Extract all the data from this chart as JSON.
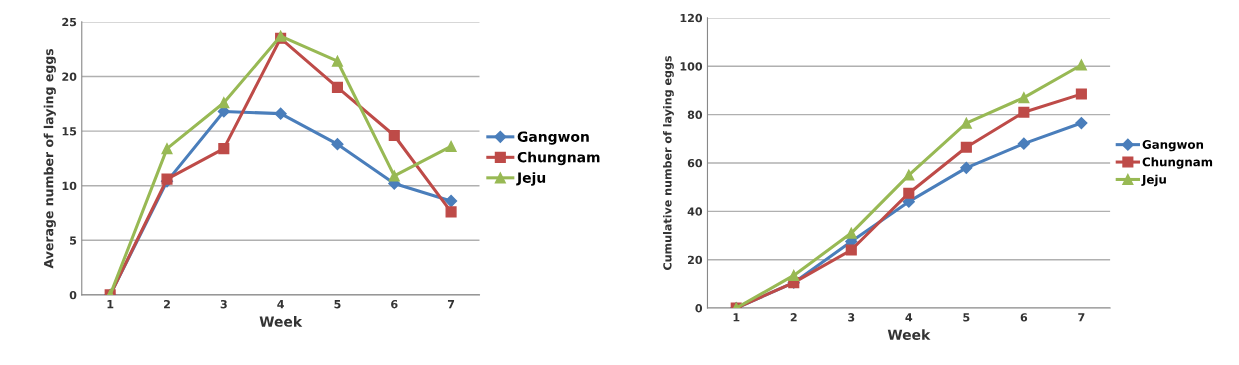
{
  "chart_data": [
    {
      "type": "line",
      "xlabel": "Week",
      "ylabel": "Average number of laying eggs",
      "categories": [
        "1",
        "2",
        "3",
        "4",
        "5",
        "6",
        "7"
      ],
      "ylim": [
        0,
        25
      ],
      "yticks": [
        0,
        5,
        10,
        15,
        20,
        25
      ],
      "grid": "y",
      "legend": "right",
      "series": [
        {
          "name": "Gangwon",
          "color": "#4a7ebb",
          "marker": "diamond",
          "values": [
            0,
            10.4,
            16.8,
            16.6,
            13.8,
            10.2,
            8.6
          ]
        },
        {
          "name": "Chungnam",
          "color": "#be4b48",
          "marker": "square",
          "values": [
            0,
            10.6,
            13.4,
            23.5,
            19.0,
            14.6,
            7.6
          ]
        },
        {
          "name": "Jeju",
          "color": "#98b954",
          "marker": "triangle",
          "values": [
            0,
            13.4,
            17.6,
            23.7,
            21.4,
            10.9,
            13.6
          ]
        }
      ]
    },
    {
      "type": "line",
      "xlabel": "Week",
      "ylabel": "Cumulative number of laying eggs",
      "categories": [
        "1",
        "2",
        "3",
        "4",
        "5",
        "6",
        "7"
      ],
      "ylim": [
        0,
        120
      ],
      "yticks": [
        0,
        20,
        40,
        60,
        80,
        100,
        120
      ],
      "grid": "y",
      "legend": "right",
      "series": [
        {
          "name": "Gangwon",
          "color": "#4a7ebb",
          "marker": "diamond",
          "values": [
            0,
            10.5,
            27.5,
            44,
            58,
            68,
            76.5
          ]
        },
        {
          "name": "Chungnam",
          "color": "#be4b48",
          "marker": "square",
          "values": [
            0,
            10.5,
            24,
            47.5,
            66.5,
            81,
            88.5
          ]
        },
        {
          "name": "Jeju",
          "color": "#98b954",
          "marker": "triangle",
          "values": [
            0,
            13.5,
            31,
            55,
            76.5,
            87,
            100.5
          ]
        }
      ]
    }
  ]
}
